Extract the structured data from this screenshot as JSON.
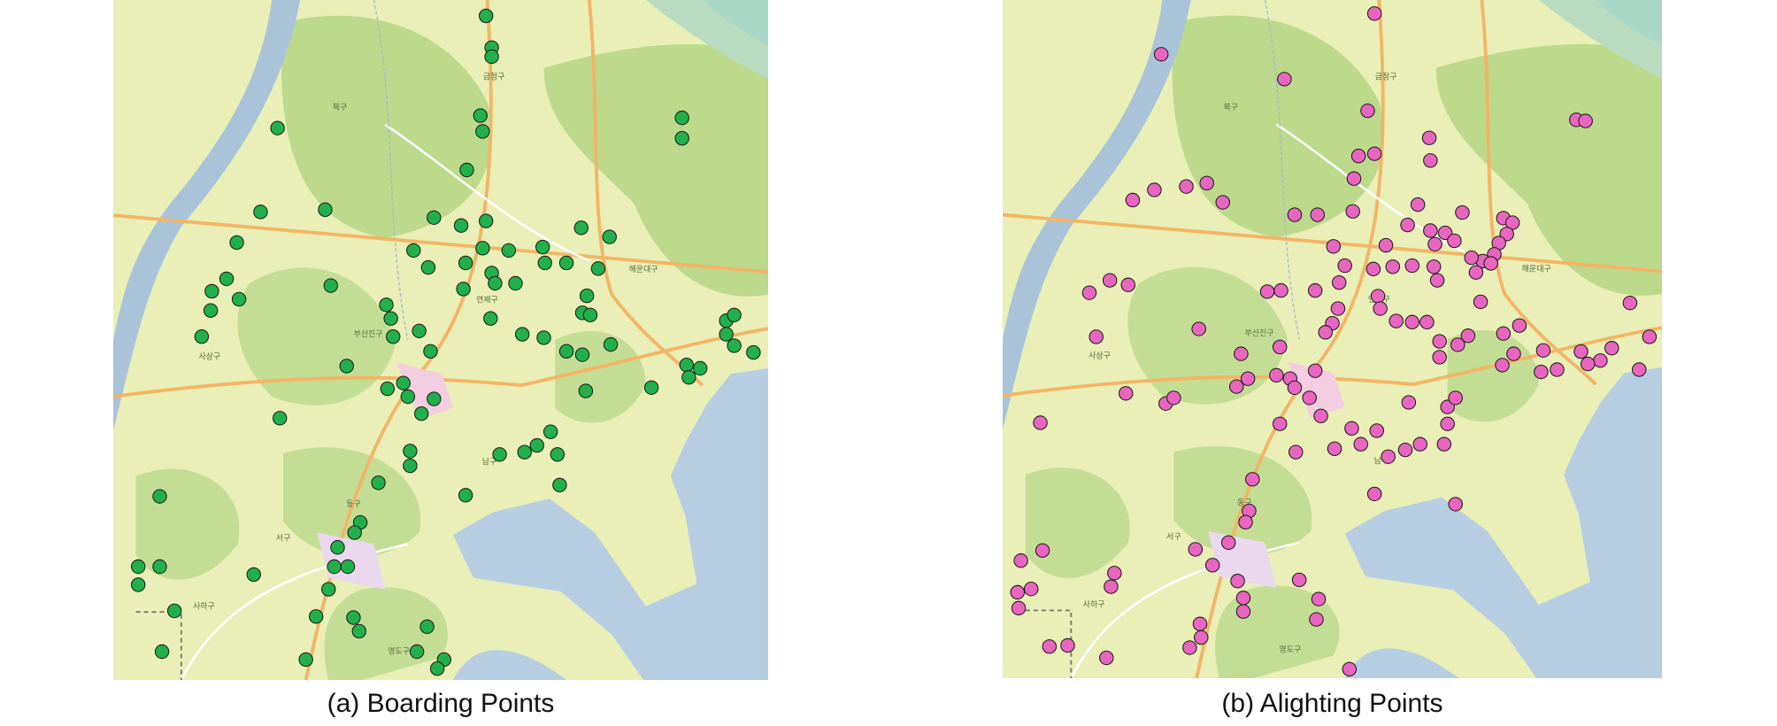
{
  "extent": {
    "lon": [
      128.95,
      129.1812
    ],
    "lat": [
      35.03,
      35.27
    ]
  },
  "districts": [
    {
      "name": "금정구",
      "lon": 129.0844,
      "lat": 35.2428
    },
    {
      "name": "북구",
      "lon": 129.03,
      "lat": 35.232
    },
    {
      "name": "사상구",
      "lon": 128.984,
      "lat": 35.144
    },
    {
      "name": "부산진구",
      "lon": 129.04,
      "lat": 35.152
    },
    {
      "name": "연제구",
      "lon": 129.082,
      "lat": 35.164
    },
    {
      "name": "해운대구",
      "lon": 129.1372,
      "lat": 35.1748
    },
    {
      "name": "남구",
      "lon": 129.0828,
      "lat": 35.1068
    },
    {
      "name": "동구",
      "lon": 129.0348,
      "lat": 35.092
    },
    {
      "name": "서구",
      "lon": 129.01,
      "lat": 35.08
    },
    {
      "name": "사하구",
      "lon": 128.982,
      "lat": 35.056
    },
    {
      "name": "영도구",
      "lon": 129.0508,
      "lat": 35.04
    }
  ],
  "panels": [
    {
      "caption": "(a) Boarding Points",
      "color": "#22b04a",
      "points": [
        [
          129.0816,
          35.2644
        ],
        [
          129.0836,
          35.2532
        ],
        [
          129.0836,
          35.25
        ],
        [
          129.0796,
          35.2292
        ],
        [
          129.0804,
          35.2236
        ],
        [
          129.008,
          35.2248
        ],
        [
          129.1508,
          35.2284
        ],
        [
          129.1508,
          35.2212
        ],
        [
          129.0748,
          35.21
        ],
        [
          129.002,
          35.1952
        ],
        [
          129.0248,
          35.196
        ],
        [
          129.0632,
          35.1932
        ],
        [
          129.0728,
          35.1904
        ],
        [
          129.0816,
          35.192
        ],
        [
          129.1152,
          35.1896
        ],
        [
          129.1252,
          35.1864
        ],
        [
          128.9936,
          35.1844
        ],
        [
          129.056,
          35.1816
        ],
        [
          129.0612,
          35.1756
        ],
        [
          129.0804,
          35.1824
        ],
        [
          129.0896,
          35.1816
        ],
        [
          129.1016,
          35.1828
        ],
        [
          129.1024,
          35.1772
        ],
        [
          129.0744,
          35.1772
        ],
        [
          129.0836,
          35.1736
        ],
        [
          129.092,
          35.17
        ],
        [
          129.11,
          35.1772
        ],
        [
          129.1212,
          35.1752
        ],
        [
          128.99,
          35.1716
        ],
        [
          128.9848,
          35.1672
        ],
        [
          128.9944,
          35.1644
        ],
        [
          128.9844,
          35.1604
        ],
        [
          129.0268,
          35.1692
        ],
        [
          129.0736,
          35.168
        ],
        [
          129.0848,
          35.17
        ],
        [
          129.0464,
          35.1624
        ],
        [
          129.048,
          35.1576
        ],
        [
          129.0832,
          35.1576
        ],
        [
          129.1172,
          35.1656
        ],
        [
          129.1156,
          35.1596
        ],
        [
          129.1184,
          35.1588
        ],
        [
          128.9812,
          35.1512
        ],
        [
          129.0488,
          35.1512
        ],
        [
          129.058,
          35.1532
        ],
        [
          129.062,
          35.146
        ],
        [
          129.0944,
          35.152
        ],
        [
          129.102,
          35.1508
        ],
        [
          129.11,
          35.146
        ],
        [
          129.1156,
          35.1448
        ],
        [
          129.1256,
          35.1484
        ],
        [
          129.0324,
          35.1408
        ],
        [
          129.0468,
          35.1328
        ],
        [
          129.0524,
          35.1348
        ],
        [
          129.054,
          35.13
        ],
        [
          129.0588,
          35.124
        ],
        [
          129.0632,
          35.1292
        ],
        [
          129.14,
          35.1332
        ],
        [
          129.1524,
          35.1412
        ],
        [
          129.1572,
          35.14
        ],
        [
          129.1532,
          35.1368
        ],
        [
          129.1664,
          35.1568
        ],
        [
          129.1692,
          35.1588
        ],
        [
          129.1664,
          35.152
        ],
        [
          129.1692,
          35.148
        ],
        [
          129.176,
          35.1456
        ],
        [
          129.1168,
          35.132
        ],
        [
          129.0088,
          35.1224
        ],
        [
          129.1044,
          35.1176
        ],
        [
          129.0996,
          35.1128
        ],
        [
          129.0952,
          35.1104
        ],
        [
          129.0864,
          35.1096
        ],
        [
          129.1068,
          35.1096
        ],
        [
          129.0548,
          35.1108
        ],
        [
          129.0548,
          35.1056
        ],
        [
          129.0436,
          35.0996
        ],
        [
          129.0744,
          35.0952
        ],
        [
          129.1076,
          35.0988
        ],
        [
          128.9664,
          35.0948
        ],
        [
          129.0372,
          35.0856
        ],
        [
          129.0352,
          35.082
        ],
        [
          129.0292,
          35.0768
        ],
        [
          129.0328,
          35.07
        ],
        [
          129.028,
          35.07
        ],
        [
          129.026,
          35.062
        ],
        [
          129.0216,
          35.0524
        ],
        [
          129.0348,
          35.052
        ],
        [
          129.0368,
          35.0472
        ],
        [
          128.9996,
          35.0672
        ],
        [
          128.9588,
          35.07
        ],
        [
          128.9664,
          35.07
        ],
        [
          128.9588,
          35.0636
        ],
        [
          128.9716,
          35.0544
        ],
        [
          128.9672,
          35.04
        ],
        [
          129.0608,
          35.0488
        ],
        [
          129.0572,
          35.04
        ],
        [
          129.018,
          35.0372
        ],
        [
          129.0668,
          35.0372
        ],
        [
          129.0644,
          35.034
        ]
      ]
    },
    {
      "caption": "(b) Alighting Points",
      "color": "#e866c0",
      "points": [
        [
          129.0804,
          35.2652
        ],
        [
          129.0056,
          35.2508
        ],
        [
          129.0488,
          35.242
        ],
        [
          129.078,
          35.2308
        ],
        [
          129.0996,
          35.2212
        ],
        [
          129.1512,
          35.2276
        ],
        [
          129.1544,
          35.2272
        ],
        [
          129.0748,
          35.2148
        ],
        [
          129.0804,
          35.2156
        ],
        [
          129.0732,
          35.2068
        ],
        [
          129.1,
          35.2132
        ],
        [
          128.9956,
          35.1992
        ],
        [
          129.0032,
          35.2028
        ],
        [
          129.0144,
          35.204
        ],
        [
          129.0216,
          35.2052
        ],
        [
          129.0272,
          35.1984
        ],
        [
          129.0524,
          35.194
        ],
        [
          129.0604,
          35.194
        ],
        [
          129.0728,
          35.1952
        ],
        [
          129.0956,
          35.1976
        ],
        [
          129.1112,
          35.1948
        ],
        [
          129.092,
          35.1904
        ],
        [
          129.066,
          35.1828
        ],
        [
          129.0844,
          35.1832
        ],
        [
          129.0868,
          35.1756
        ],
        [
          129.1,
          35.1884
        ],
        [
          129.1052,
          35.1876
        ],
        [
          129.1016,
          35.1836
        ],
        [
          129.1084,
          35.1848
        ],
        [
          129.1256,
          35.1928
        ],
        [
          129.1288,
          35.1912
        ],
        [
          129.1268,
          35.1872
        ],
        [
          129.124,
          35.184
        ],
        [
          129.1224,
          35.18
        ],
        [
          129.1184,
          35.1776
        ],
        [
          129.1144,
          35.1788
        ],
        [
          129.116,
          35.1736
        ],
        [
          129.1212,
          35.1768
        ],
        [
          129.07,
          35.176
        ],
        [
          129.08,
          35.1748
        ],
        [
          129.0936,
          35.176
        ],
        [
          129.1012,
          35.1756
        ],
        [
          129.1024,
          35.1708
        ],
        [
          129.0596,
          35.1672
        ],
        [
          129.068,
          35.17
        ],
        [
          129.0816,
          35.1652
        ],
        [
          129.0824,
          35.1608
        ],
        [
          129.088,
          35.1564
        ],
        [
          129.0936,
          35.156
        ],
        [
          129.0988,
          35.156
        ],
        [
          129.1176,
          35.1632
        ],
        [
          129.1312,
          35.1548
        ],
        [
          129.1256,
          35.152
        ],
        [
          129.1132,
          35.1512
        ],
        [
          129.1096,
          35.148
        ],
        [
          129.1032,
          35.1492
        ],
        [
          129.1032,
          35.1436
        ],
        [
          129.0476,
          35.1672
        ],
        [
          129.0428,
          35.1668
        ],
        [
          129.0676,
          35.1608
        ],
        [
          129.0656,
          35.1556
        ],
        [
          129.0632,
          35.1524
        ],
        [
          129.0472,
          35.1472
        ],
        [
          129.0188,
          35.1536
        ],
        [
          128.9804,
          35.1664
        ],
        [
          128.9876,
          35.1708
        ],
        [
          128.994,
          35.1692
        ],
        [
          128.9828,
          35.1508
        ],
        [
          128.9932,
          35.1308
        ],
        [
          129.0072,
          35.1272
        ],
        [
          129.01,
          35.1292
        ],
        [
          129.0336,
          35.1448
        ],
        [
          129.046,
          35.1372
        ],
        [
          129.0508,
          35.136
        ],
        [
          129.0524,
          35.1328
        ],
        [
          129.0576,
          35.1292
        ],
        [
          129.0596,
          35.1388
        ],
        [
          129.032,
          35.1332
        ],
        [
          129.036,
          35.136
        ],
        [
          129.0472,
          35.12
        ],
        [
          129.0616,
          35.1228
        ],
        [
          129.0528,
          35.11
        ],
        [
          129.0664,
          35.1112
        ],
        [
          129.0724,
          35.1184
        ],
        [
          129.0812,
          35.1176
        ],
        [
          129.0756,
          35.1128
        ],
        [
          129.0852,
          35.1084
        ],
        [
          129.0912,
          35.1108
        ],
        [
          129.0964,
          35.1128
        ],
        [
          129.106,
          35.126
        ],
        [
          129.106,
          35.12
        ],
        [
          129.1088,
          35.1292
        ],
        [
          129.0924,
          35.1276
        ],
        [
          129.1048,
          35.1128
        ],
        [
          129.0804,
          35.0952
        ],
        [
          129.1088,
          35.0916
        ],
        [
          129.0376,
          35.1004
        ],
        [
          129.0364,
          35.0892
        ],
        [
          129.0352,
          35.0852
        ],
        [
          129.0176,
          35.0756
        ],
        [
          129.0292,
          35.078
        ],
        [
          129.0236,
          35.07
        ],
        [
          129.0324,
          35.0644
        ],
        [
          129.0344,
          35.0584
        ],
        [
          129.0344,
          35.0536
        ],
        [
          129.054,
          35.0648
        ],
        [
          129.0608,
          35.058
        ],
        [
          129.06,
          35.0508
        ],
        [
          129.0192,
          35.0492
        ],
        [
          129.0196,
          35.0444
        ],
        [
          129.0156,
          35.0408
        ],
        [
          128.9632,
          35.1204
        ],
        [
          128.9564,
          35.0716
        ],
        [
          128.964,
          35.0752
        ],
        [
          128.9552,
          35.0604
        ],
        [
          128.96,
          35.0616
        ],
        [
          128.9556,
          35.0548
        ],
        [
          128.9892,
          35.0672
        ],
        [
          128.988,
          35.0624
        ],
        [
          128.9664,
          35.0412
        ],
        [
          128.9728,
          35.0416
        ],
        [
          128.9864,
          35.0372
        ],
        [
          129.0716,
          35.0332
        ],
        [
          129.17,
          35.1628
        ],
        [
          129.1768,
          35.1508
        ],
        [
          129.1732,
          35.1392
        ],
        [
          129.1528,
          35.1456
        ],
        [
          129.1636,
          35.1468
        ],
        [
          129.1596,
          35.1424
        ],
        [
          129.1552,
          35.1412
        ],
        [
          129.1444,
          35.1392
        ],
        [
          129.1396,
          35.146
        ],
        [
          129.1388,
          35.1384
        ],
        [
          129.1252,
          35.1408
        ],
        [
          129.1292,
          35.1448
        ]
      ]
    }
  ]
}
